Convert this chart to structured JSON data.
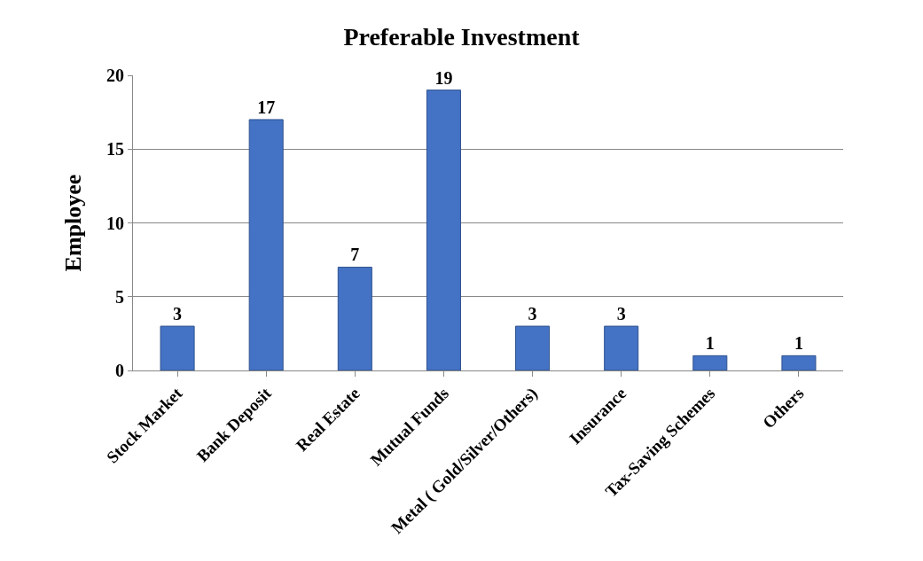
{
  "chart_data": {
    "type": "bar",
    "title": "Preferable Investment",
    "ylabel": "Employee",
    "categories": [
      "Stock Market",
      "Bank Deposit",
      "Real Estate",
      "Mutual Funds",
      "Metal ( Gold/Silver/Others)",
      "Insurance",
      "Tax-Saving Schemes",
      "Others"
    ],
    "values": [
      3,
      17,
      7,
      19,
      3,
      3,
      1,
      1
    ],
    "color": "#4472c4",
    "ylim": [
      0,
      20
    ],
    "yticks": [
      0,
      5,
      10,
      15,
      20
    ],
    "grid": "y",
    "data_labels": true,
    "legend": false
  }
}
